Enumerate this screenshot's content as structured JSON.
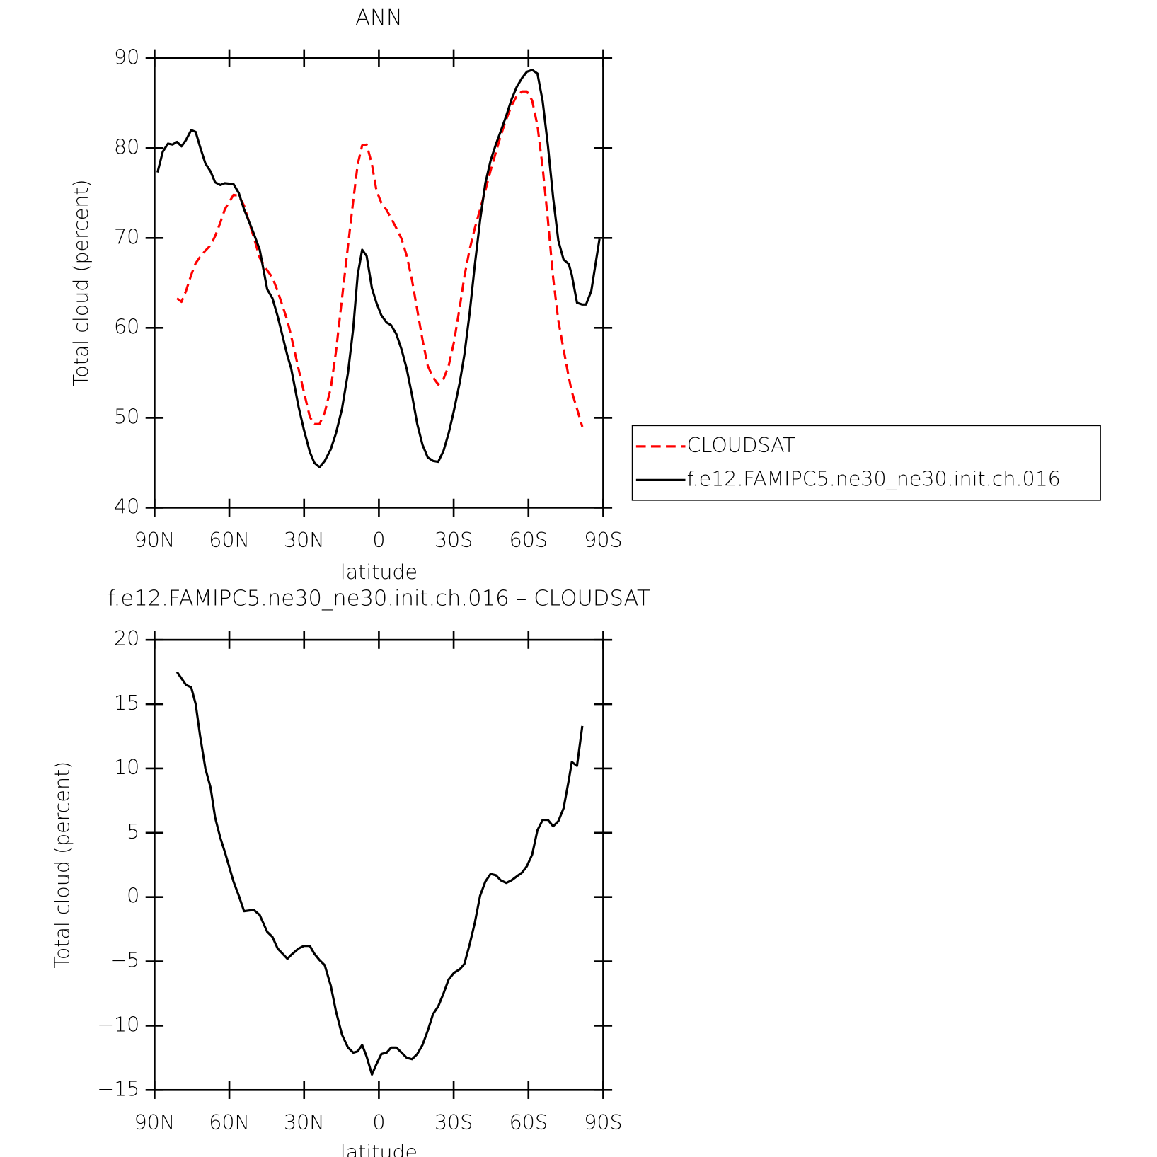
{
  "chart_data": [
    {
      "type": "line",
      "title": "ANN",
      "xlabel": "latitude",
      "ylabel": "Total cloud (percent)",
      "xlim": [
        90,
        -90
      ],
      "xticks": [
        {
          "value": 90,
          "label": "90N"
        },
        {
          "value": 60,
          "label": "60N"
        },
        {
          "value": 30,
          "label": "30N"
        },
        0,
        {
          "value": -30,
          "label": "30S"
        },
        {
          "value": -60,
          "label": "60S"
        },
        {
          "value": -90,
          "label": "90S"
        }
      ],
      "ylim": [
        40,
        90
      ],
      "yticks": [
        40,
        50,
        60,
        70,
        80,
        90
      ],
      "legend": "right",
      "x": [
        88.8,
        86.7,
        84.6,
        82.8,
        81.0,
        79.2,
        77.4,
        75.3,
        73.5,
        71.7,
        69.6,
        67.5,
        65.7,
        63.6,
        61.8,
        58.3,
        56.2,
        54.1,
        50.2,
        47.8,
        44.8,
        42.7,
        40.6,
        36.7,
        35.2,
        32.2,
        30.1,
        27.7,
        25.9,
        23.8,
        21.7,
        19.3,
        17.2,
        14.8,
        12.4,
        10.3,
        8.5,
        6.7,
        4.9,
        2.8,
        1.0,
        -1.0,
        -3.1,
        -4.9,
        -7.0,
        -9.1,
        -11.2,
        -13.3,
        -15.4,
        -17.5,
        -19.6,
        -21.7,
        -23.8,
        -25.9,
        -28.0,
        -30.1,
        -32.5,
        -34.3,
        -36.4,
        -38.5,
        -40.6,
        -42.7,
        -44.8,
        -46.9,
        -48.9,
        -51.1,
        -53.2,
        -55.3,
        -57.4,
        -59.4,
        -61.5,
        -63.6,
        -65.7,
        -67.8,
        -69.9,
        -72.0,
        -74.1,
        -76.2,
        -77.4,
        -79.5,
        -81.6,
        -83.1,
        -85.2,
        -88.5
      ],
      "series": [
        {
          "name": "CLOUDSAT",
          "color": "#ff0000",
          "linestyle": "dashed",
          "values": [
            null,
            null,
            null,
            null,
            63.3,
            62.9,
            64.1,
            65.9,
            67.2,
            67.9,
            68.6,
            69.2,
            70.2,
            71.7,
            73.2,
            74.8,
            74.7,
            73.6,
            70.1,
            67.8,
            66.4,
            65.6,
            64.1,
            60.8,
            59.1,
            55.4,
            52.9,
            50.1,
            49.3,
            49.3,
            50.6,
            53.3,
            57.4,
            63.3,
            69.1,
            74.1,
            78.2,
            80.3,
            80.4,
            78.2,
            75.3,
            73.9,
            73.1,
            72.2,
            71.1,
            69.9,
            68.0,
            65.3,
            62.0,
            58.7,
            55.8,
            54.5,
            53.7,
            54.3,
            55.8,
            58.4,
            62.4,
            65.7,
            68.7,
            71.1,
            73.2,
            75.3,
            77.5,
            79.5,
            81.4,
            83.2,
            84.7,
            85.8,
            86.3,
            86.3,
            85.3,
            82.5,
            77.8,
            72.0,
            65.6,
            60.8,
            57.6,
            54.5,
            52.9,
            51.0,
            49.0,
            null,
            null,
            null
          ]
        },
        {
          "name": "f.e12.FAMIPC5.ne30_ne30.init.ch.016",
          "color": "#000000",
          "linestyle": "solid",
          "values": [
            77.3,
            79.6,
            80.5,
            80.4,
            80.7,
            80.2,
            80.9,
            82.0,
            81.8,
            80.1,
            78.3,
            77.4,
            76.2,
            75.9,
            76.1,
            76.0,
            75.0,
            73.2,
            70.5,
            68.7,
            64.3,
            63.3,
            61.3,
            56.9,
            55.5,
            51.2,
            48.7,
            46.2,
            45.0,
            44.5,
            45.2,
            46.5,
            48.3,
            51.0,
            55.0,
            59.9,
            65.9,
            68.7,
            68.0,
            64.4,
            62.8,
            61.4,
            60.6,
            60.3,
            59.3,
            57.6,
            55.4,
            52.5,
            49.3,
            47.0,
            45.6,
            45.2,
            45.1,
            46.3,
            48.3,
            50.8,
            54.0,
            57.0,
            61.6,
            67.0,
            72.0,
            76.1,
            78.6,
            80.4,
            81.9,
            83.6,
            85.4,
            86.8,
            87.8,
            88.5,
            88.7,
            88.3,
            85.2,
            80.3,
            74.5,
            69.7,
            67.6,
            67.1,
            65.9,
            62.8,
            62.6,
            62.6,
            64.1,
            69.9
          ]
        }
      ]
    },
    {
      "type": "line",
      "title": "f.e12.FAMIPC5.ne30_ne30.init.ch.016 – CLOUDSAT",
      "xlabel": "latitude",
      "ylabel": "Total cloud (percent)",
      "xlim": [
        90,
        -90
      ],
      "xticks": [
        {
          "value": 90,
          "label": "90N"
        },
        {
          "value": 60,
          "label": "60N"
        },
        {
          "value": 30,
          "label": "30N"
        },
        0,
        {
          "value": -30,
          "label": "30S"
        },
        {
          "value": -60,
          "label": "60S"
        },
        {
          "value": -90,
          "label": "90S"
        }
      ],
      "ylim": [
        -15,
        20
      ],
      "yticks": [
        {
          "value": -15,
          "label": "−15"
        },
        {
          "value": -10,
          "label": "−10"
        },
        {
          "value": -5,
          "label": "−5"
        },
        0,
        5,
        10,
        15,
        20
      ],
      "x": [
        81.0,
        79.2,
        77.4,
        75.3,
        73.5,
        71.7,
        69.6,
        67.5,
        65.7,
        63.6,
        61.8,
        58.3,
        56.2,
        54.1,
        50.2,
        47.8,
        44.8,
        42.7,
        40.6,
        36.7,
        35.2,
        32.2,
        30.1,
        27.7,
        25.9,
        23.8,
        21.7,
        19.3,
        17.2,
        14.8,
        12.4,
        10.3,
        8.5,
        6.7,
        4.9,
        2.8,
        1.0,
        -1.0,
        -3.1,
        -4.9,
        -7.0,
        -9.1,
        -11.2,
        -13.3,
        -15.4,
        -17.5,
        -19.6,
        -21.7,
        -23.8,
        -25.9,
        -28.0,
        -30.1,
        -32.5,
        -34.3,
        -36.4,
        -38.5,
        -40.6,
        -42.7,
        -44.8,
        -46.9,
        -48.9,
        -51.1,
        -53.2,
        -55.3,
        -57.4,
        -59.4,
        -61.5,
        -63.6,
        -65.7,
        -67.8,
        -69.9,
        -72.0,
        -74.1,
        -76.2,
        -77.4,
        -79.5,
        -81.6
      ],
      "series": [
        {
          "color": "#000000",
          "linestyle": "solid",
          "values": [
            17.5,
            17.0,
            16.5,
            16.3,
            15.0,
            12.5,
            10.0,
            8.5,
            6.2,
            4.6,
            3.5,
            1.2,
            0.1,
            -1.1,
            -1.0,
            -1.4,
            -2.7,
            -3.1,
            -4.0,
            -4.8,
            -4.5,
            -4.0,
            -3.8,
            -3.8,
            -4.4,
            -4.9,
            -5.3,
            -6.9,
            -8.9,
            -10.7,
            -11.7,
            -12.1,
            -12.0,
            -11.5,
            -12.4,
            -13.8,
            -13.0,
            -12.2,
            -12.1,
            -11.7,
            -11.7,
            -12.1,
            -12.5,
            -12.6,
            -12.2,
            -11.5,
            -10.4,
            -9.1,
            -8.5,
            -7.5,
            -6.4,
            -5.9,
            -5.6,
            -5.2,
            -3.7,
            -2.0,
            0.1,
            1.2,
            1.8,
            1.7,
            1.3,
            1.1,
            1.3,
            1.6,
            1.9,
            2.4,
            3.3,
            5.2,
            6.0,
            6.0,
            5.5,
            5.9,
            6.9,
            9.1,
            10.5,
            10.2,
            13.3
          ]
        }
      ]
    }
  ]
}
